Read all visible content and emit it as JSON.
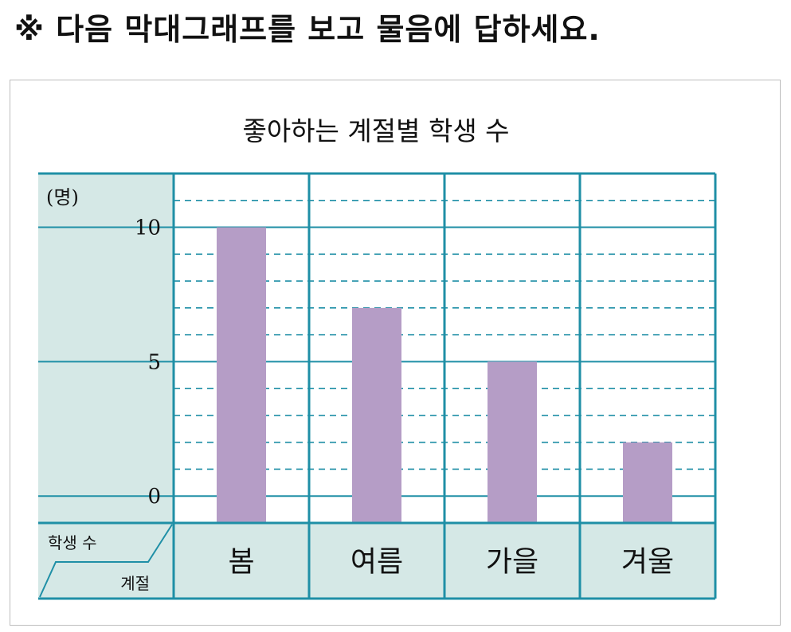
{
  "instruction": "※ 다음 막대그래프를 보고 물음에 답하세요.",
  "header_cell": {
    "value_label": "학생 수",
    "category_label": "계절"
  },
  "colors": {
    "grid": "#1f8fa6",
    "panel": "#d5e8e6",
    "bar": "#b59dc6"
  },
  "chart_data": {
    "type": "bar",
    "title": "좋아하는 계절별 학생 수",
    "ylabel": "(명)",
    "categories": [
      "봄",
      "여름",
      "가을",
      "겨울"
    ],
    "values": [
      10,
      7,
      5,
      2
    ],
    "yticks": [
      0,
      5,
      10
    ],
    "ylim": [
      -1,
      12
    ],
    "grid": true
  }
}
